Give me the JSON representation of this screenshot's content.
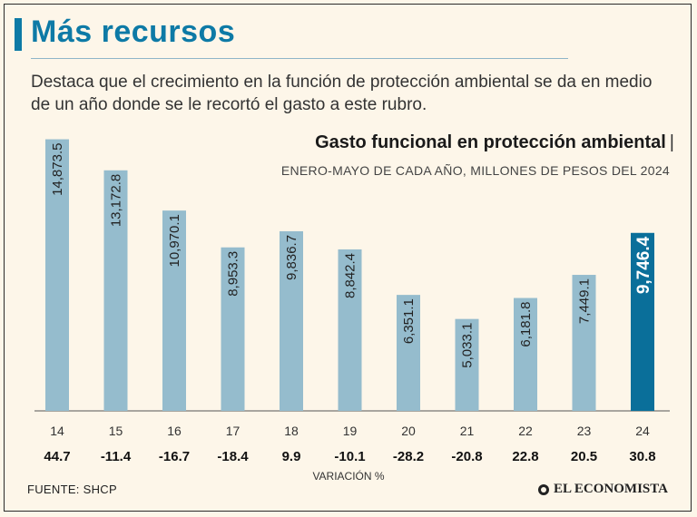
{
  "header": {
    "title": "Más recursos",
    "subtitle": "Destaca que el crecimiento en la función de protección ambiental se da en medio de un año donde se le recortó el gasto a este rubro."
  },
  "chart_data": {
    "type": "bar",
    "title": "Gasto funcional en protección ambiental",
    "title_suffix": "|",
    "subtitle": "ENERO-MAYO DE CADA AÑO, MILLONES DE PESOS DEL 2024",
    "categories": [
      "14",
      "15",
      "16",
      "17",
      "18",
      "19",
      "20",
      "21",
      "22",
      "23",
      "24"
    ],
    "values": [
      14873.5,
      13172.8,
      10970.1,
      8953.3,
      9836.7,
      8842.4,
      6351.1,
      5033.1,
      6181.8,
      7449.1,
      9746.4
    ],
    "value_labels": [
      "14,873.5",
      "13,172.8",
      "10,970.1",
      "8,953.3",
      "9,836.7",
      "8,842.4",
      "6,351.1",
      "5,033.1",
      "6,181.8",
      "7,449.1",
      "9,746.4"
    ],
    "variation": [
      "44.7",
      "-11.4",
      "-16.7",
      "-18.4",
      "9.9",
      "-10.1",
      "-28.2",
      "-20.8",
      "22.8",
      "20.5",
      "30.8"
    ],
    "variation_label": "VARIACIÓN %",
    "highlight_index": 10,
    "ylim": [
      0,
      15000
    ],
    "colors": {
      "bar": "#95bccd",
      "highlight": "#0a6f9a",
      "axis": "#555555"
    }
  },
  "footer": {
    "source": "FUENTE: SHCP",
    "brand": "EL ECONOMISTA"
  }
}
